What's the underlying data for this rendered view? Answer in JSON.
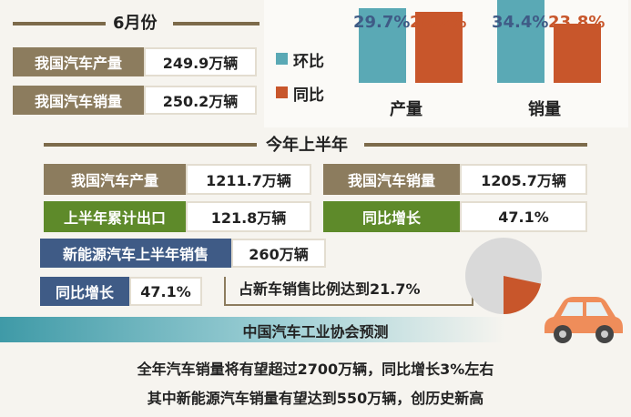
{
  "colors": {
    "khaki": "#8c7c5e",
    "green": "#5e8a2a",
    "navy": "#3f5b86",
    "teal": "#5aa9b5",
    "orange": "#c8562b",
    "pie_grey": "#d9d9d9"
  },
  "june": {
    "title": "6月份",
    "production_label": "我国汽车产量",
    "production_value": "249.9万辆",
    "sales_label": "我国汽车销量",
    "sales_value": "250.2万辆"
  },
  "chart_data": {
    "type": "bar",
    "categories": [
      "产量",
      "销量"
    ],
    "series": [
      {
        "name": "环比",
        "values": [
          29.7,
          34.4
        ],
        "labels": [
          "29.7%",
          "34.4%"
        ],
        "color": "#5aa9b5"
      },
      {
        "name": "同比",
        "values": [
          28.2,
          23.8
        ],
        "labels": [
          "28.2%",
          "23.8%"
        ],
        "color": "#c8562b"
      }
    ],
    "ylim": [
      0,
      40
    ]
  },
  "h1": {
    "title": "今年上半年",
    "production_label": "我国汽车产量",
    "production_value": "1211.7万辆",
    "sales_label": "我国汽车销量",
    "sales_value": "1205.7万辆",
    "export_label": "上半年累计出口",
    "export_value": "121.8万辆",
    "export_growth_label": "同比增长",
    "export_growth_value": "47.1%",
    "nev_label": "新能源汽车上半年销售",
    "nev_value": "260万辆",
    "nev_growth_label": "同比增长",
    "nev_growth_value": "47.1%",
    "share_text": "占新车销售比例达到21.7%",
    "share_fraction": 0.217
  },
  "forecast": {
    "title": "中国汽车工业协会预测",
    "line1": "全年汽车销量将有望超过2700万辆，同比增长3%左右",
    "line2": "其中新能源汽车销量有望达到550万辆，创历史新高"
  }
}
